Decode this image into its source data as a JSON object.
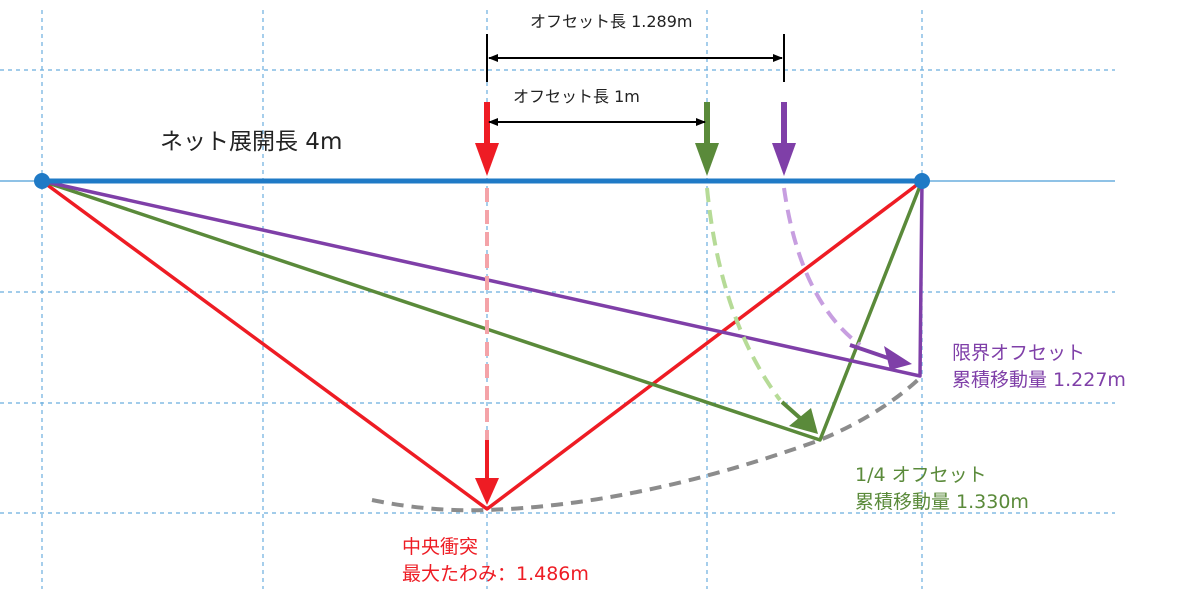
{
  "net_span_label": "ネット展開長 4m",
  "offset_long_label": "オフセット長 1.289m",
  "offset_short_label": "オフセット長 1m",
  "center_impact": {
    "title": "中央衝突",
    "value": "最大たわみ：1.486m"
  },
  "quarter_offset": {
    "title": "1/4 オフセット",
    "value": "累積移動量 1.330m"
  },
  "limit_offset": {
    "title": "限界オフセット",
    "value": "累積移動量 1.227m"
  },
  "colors": {
    "net": "#1f7ac6",
    "center": "#ee1c24",
    "center_light": "#f4a3a8",
    "quarter": "#5a8a3a",
    "quarter_light": "#b6db97",
    "limit": "#7f3fa8",
    "limit_light": "#c79ee0",
    "envelope": "#8c8c8c",
    "grid": "#6aaede"
  }
}
